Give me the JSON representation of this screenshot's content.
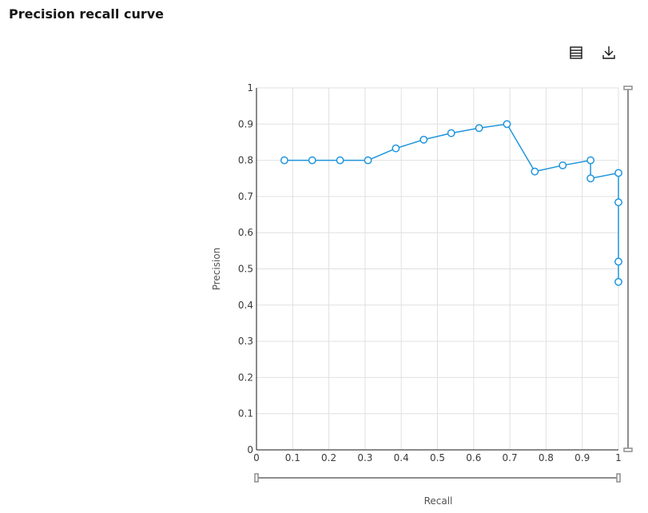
{
  "header": {
    "title": "Precision recall curve"
  },
  "toolbar": {
    "table_icon": "table-icon",
    "download_icon": "download-icon"
  },
  "colors": {
    "series": "#1f96dd",
    "grid": "#e0e0e0",
    "axis": "#161616",
    "zoom_bar": "#8d8d8d"
  },
  "chart_data": {
    "type": "line",
    "title": "Precision recall curve",
    "xlabel": "Recall",
    "ylabel": "Precision",
    "xlim": [
      0,
      1
    ],
    "ylim": [
      0,
      1
    ],
    "x_ticks": [
      "0",
      "0.1",
      "0.2",
      "0.3",
      "0.4",
      "0.5",
      "0.6",
      "0.7",
      "0.8",
      "0.9",
      "1"
    ],
    "y_ticks": [
      "0",
      "0.1",
      "0.2",
      "0.3",
      "0.4",
      "0.5",
      "0.6",
      "0.7",
      "0.8",
      "0.9",
      "1"
    ],
    "grid": true,
    "series": [
      {
        "x": [
          0.077,
          0.154,
          0.231,
          0.308,
          0.385,
          0.462,
          0.538,
          0.615,
          0.692,
          0.769,
          0.846,
          0.923,
          0.923,
          1.0,
          1.0,
          1.0,
          1.0
        ],
        "y": [
          0.8,
          0.8,
          0.8,
          0.8,
          0.833,
          0.857,
          0.875,
          0.889,
          0.9,
          0.769,
          0.786,
          0.8,
          0.75,
          0.765,
          0.684,
          0.52,
          0.464
        ]
      }
    ]
  }
}
